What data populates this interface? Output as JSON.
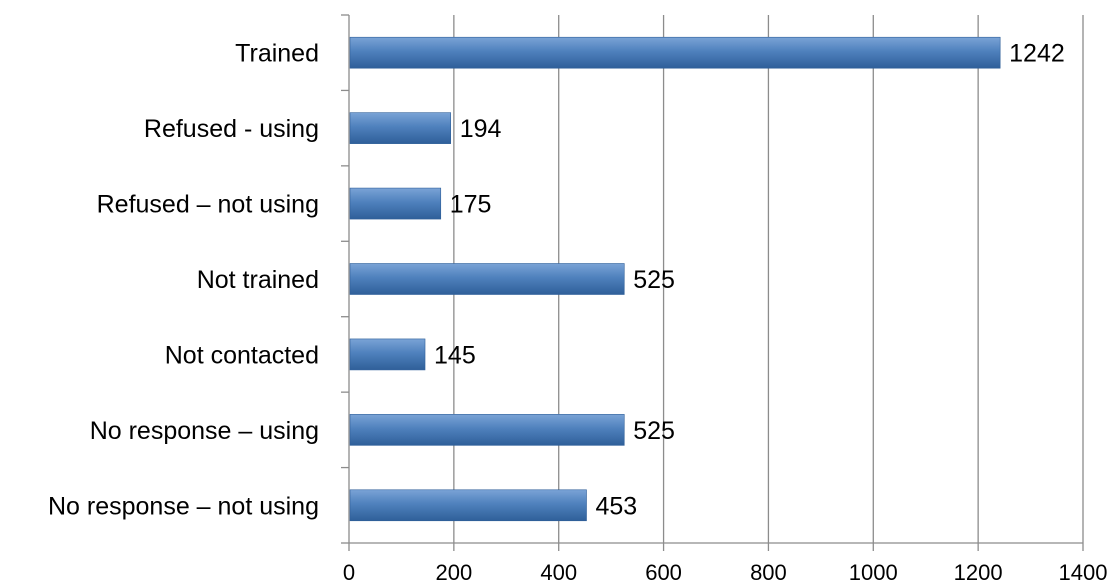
{
  "chart_data": {
    "type": "bar",
    "orientation": "horizontal",
    "categories": [
      "Trained",
      "Refused - using",
      "Refused – not using",
      "Not trained",
      "Not contacted",
      "No response – using",
      "No response – not using"
    ],
    "values": [
      1242,
      194,
      175,
      525,
      145,
      525,
      453
    ],
    "data_labels": [
      "1242",
      "194",
      "175",
      "525",
      "145",
      "525",
      "453"
    ],
    "title": "",
    "xlabel": "",
    "ylabel": "",
    "xlim": [
      0,
      1400
    ],
    "x_ticks": [
      0,
      200,
      400,
      600,
      800,
      1000,
      1200,
      1400
    ],
    "x_tick_labels": [
      "0",
      "200",
      "400",
      "600",
      "800",
      "1000",
      "1200",
      "1400"
    ],
    "grid": "vertical",
    "legend": "none",
    "bar_color": "#4f81bd",
    "bar_color_light": "#7aa3d6",
    "bar_color_dark": "#2f5f99"
  }
}
